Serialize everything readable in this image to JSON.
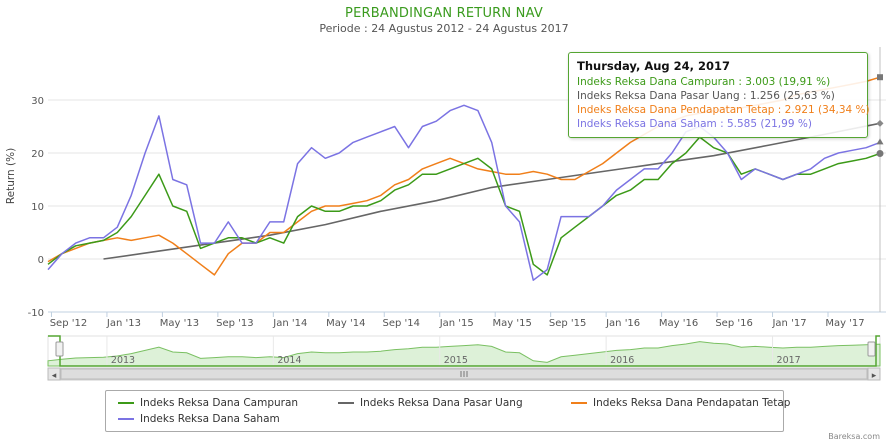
{
  "header": {
    "title": "PERBANDINGAN RETURN NAV",
    "subtitle": "Periode : 24 Agustus 2012 - 24 Agustus 2017"
  },
  "credit": "Bareksa.com",
  "colors": {
    "campuran": "#3c9a18",
    "pasar_uang": "#666666",
    "pendapatan_tetap": "#f07f1a",
    "saham": "#7b73e3",
    "grid": "#e6e6e6",
    "axis": "#c0d0e0"
  },
  "tooltip": {
    "date": "Thursday, Aug 24, 2017",
    "rows": [
      {
        "label": "Indeks Reksa Dana Campuran : 3.003 (19,91 %)",
        "color": "#3c9a18"
      },
      {
        "label": "Indeks Reksa Dana Pasar Uang : 1.256 (25,63 %)",
        "color": "#555555"
      },
      {
        "label": "Indeks Reksa Dana Pendapatan Tetap : 2.921 (34,34 %)",
        "color": "#f07f1a"
      },
      {
        "label": "Indeks Reksa Dana Saham : 5.585 (21,99 %)",
        "color": "#7b73e3"
      }
    ]
  },
  "navigator": {
    "years": [
      "2013",
      "2014",
      "2015",
      "2016",
      "2017"
    ],
    "scroll_icon": "grip-icon",
    "left_arrow": "◂",
    "right_arrow": "▸"
  },
  "legend": [
    {
      "name": "Indeks Reksa Dana Campuran",
      "color": "#3c9a18"
    },
    {
      "name": "Indeks Reksa Dana Pasar Uang",
      "color": "#666666"
    },
    {
      "name": "Indeks Reksa Dana Pendapatan Tetap",
      "color": "#f07f1a"
    },
    {
      "name": "Indeks Reksa Dana Saham",
      "color": "#7b73e3"
    }
  ],
  "chart_data": {
    "type": "line",
    "title": "PERBANDINGAN RETURN NAV",
    "subtitle": "Periode : 24 Agustus 2012 - 24 Agustus 2017",
    "ylabel": "Return (%)",
    "xlabel": "",
    "ylim": [
      -10,
      40
    ],
    "yticks": [
      -10,
      0,
      10,
      20,
      30
    ],
    "x_tick_labels": [
      "Sep '12",
      "Jan '13",
      "May '13",
      "Sep '13",
      "Jan '14",
      "May '14",
      "Sep '14",
      "Jan '15",
      "May '15",
      "Sep '15",
      "Jan '16",
      "May '16",
      "Sep '16",
      "Jan '17",
      "May '17"
    ],
    "x_range_months": [
      0,
      60
    ],
    "x_tick_months": [
      0.25,
      4.25,
      8.25,
      12.25,
      16.25,
      20.25,
      24.25,
      28.25,
      32.25,
      36.25,
      40.25,
      44.25,
      48.25,
      52.25,
      56.25
    ],
    "series": [
      {
        "name": "Indeks Reksa Dana Campuran",
        "months": [
          0,
          1,
          2,
          3,
          4,
          5,
          6,
          7,
          8,
          9,
          10,
          11,
          12,
          13,
          14,
          15,
          16,
          17,
          18,
          19,
          20,
          21,
          22,
          23,
          24,
          25,
          26,
          27,
          28,
          29,
          30,
          31,
          32,
          33,
          34,
          35,
          36,
          37,
          38,
          39,
          40,
          41,
          42,
          43,
          44,
          45,
          46,
          47,
          48,
          49,
          50,
          51,
          52,
          53,
          54,
          55,
          56,
          57,
          58,
          59,
          60
        ],
        "values": [
          -1,
          1,
          2.5,
          3,
          3.5,
          5,
          8,
          12,
          16,
          10,
          9,
          2,
          3,
          4,
          4,
          3,
          4,
          3,
          8,
          10,
          9,
          9,
          10,
          10,
          11,
          13,
          14,
          16,
          16,
          17,
          18,
          19,
          17,
          10,
          9,
          -1,
          -3,
          4,
          6,
          8,
          10,
          12,
          13,
          15,
          15,
          18,
          20,
          23,
          21,
          20,
          16,
          17,
          16,
          15,
          16,
          16,
          17,
          18,
          18.5,
          19,
          19.9
        ]
      },
      {
        "name": "Indeks Reksa Dana Pasar Uang",
        "months": [
          4,
          8,
          12,
          16,
          20,
          24,
          28,
          32,
          36,
          40,
          44,
          48,
          52,
          56,
          60
        ],
        "values": [
          0,
          1.5,
          3,
          4.5,
          6.5,
          9,
          11,
          13.5,
          15,
          16.5,
          18,
          19.5,
          21.5,
          23.5,
          25.6
        ]
      },
      {
        "name": "Indeks Reksa Dana Pendapatan Tetap",
        "months": [
          0,
          1,
          2,
          3,
          4,
          5,
          6,
          7,
          8,
          9,
          10,
          11,
          12,
          13,
          14,
          15,
          16,
          17,
          18,
          19,
          20,
          21,
          22,
          23,
          24,
          25,
          26,
          27,
          28,
          29,
          30,
          31,
          32,
          33,
          34,
          35,
          36,
          37,
          38,
          39,
          40,
          41,
          42,
          43,
          44,
          45,
          46,
          47,
          48,
          49,
          50,
          51,
          52,
          53,
          54,
          55,
          56,
          57,
          58,
          59,
          60
        ],
        "values": [
          -0.5,
          1,
          2,
          3,
          3.5,
          4,
          3.5,
          4,
          4.5,
          3,
          1,
          -1,
          -3,
          1,
          3,
          3,
          5,
          5,
          7,
          9,
          10,
          10,
          10.5,
          11,
          12,
          14,
          15,
          17,
          18,
          19,
          18,
          17,
          16.5,
          16,
          16,
          16.5,
          16,
          15,
          15,
          16.5,
          18,
          20,
          22,
          23.5,
          25,
          26,
          27,
          27.5,
          28,
          28.5,
          28.5,
          29,
          29.5,
          30,
          31,
          31.5,
          32,
          32.5,
          33,
          33.5,
          34.3
        ]
      },
      {
        "name": "Indeks Reksa Dana Saham",
        "months": [
          0,
          1,
          2,
          3,
          4,
          5,
          6,
          7,
          8,
          9,
          10,
          11,
          12,
          13,
          14,
          15,
          16,
          17,
          18,
          19,
          20,
          21,
          22,
          23,
          24,
          25,
          26,
          27,
          28,
          29,
          30,
          31,
          32,
          33,
          34,
          35,
          36,
          37,
          38,
          39,
          40,
          41,
          42,
          43,
          44,
          45,
          46,
          47,
          48,
          49,
          50,
          51,
          52,
          53,
          54,
          55,
          56,
          57,
          58,
          59,
          60
        ],
        "values": [
          -2,
          1,
          3,
          4,
          4,
          6,
          12,
          20,
          27,
          15,
          14,
          3,
          3,
          7,
          3,
          3,
          7,
          7,
          18,
          21,
          19,
          20,
          22,
          23,
          24,
          25,
          21,
          25,
          26,
          28,
          29,
          28,
          22,
          10,
          7,
          -4,
          -2,
          8,
          8,
          8,
          10,
          13,
          15,
          17,
          17,
          20,
          24,
          25,
          23,
          20,
          15,
          17,
          16,
          15,
          16,
          17,
          19,
          20,
          20.5,
          21,
          22
        ]
      }
    ]
  }
}
